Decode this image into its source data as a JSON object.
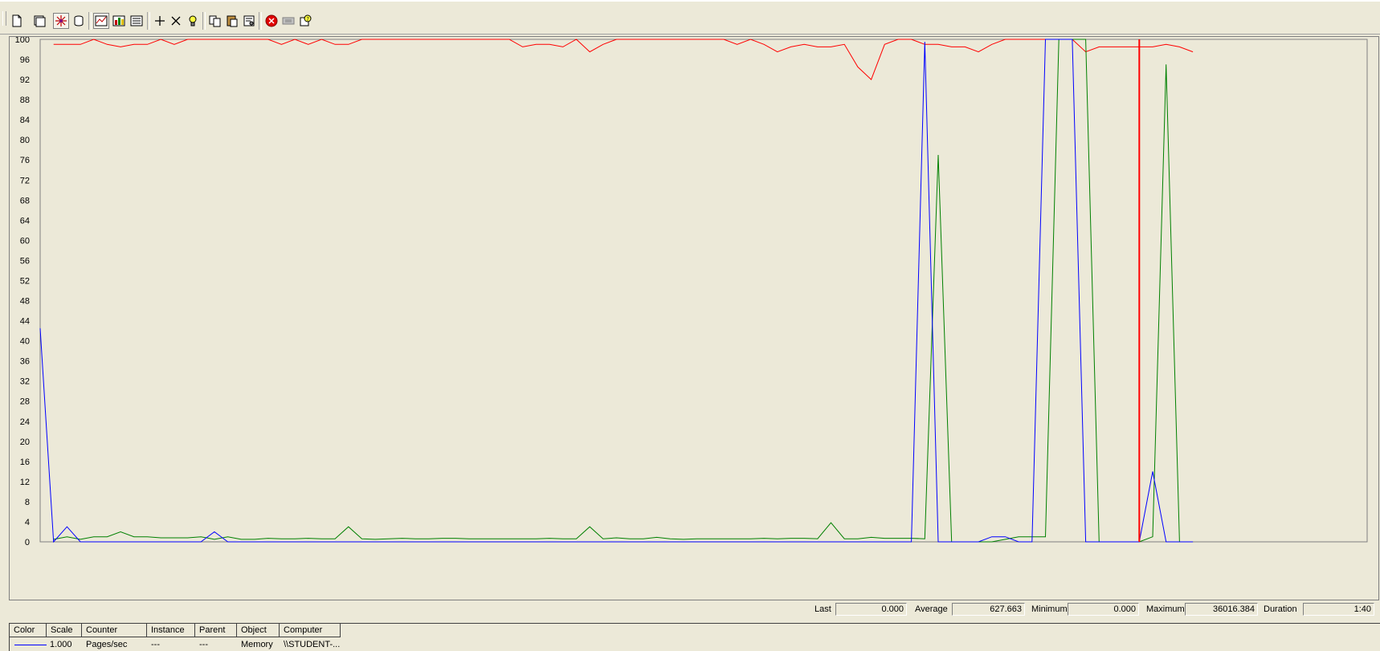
{
  "toolbar": {
    "buttons": [
      {
        "icon": "new-counter-set-icon"
      },
      {
        "icon": "clear-display-icon"
      },
      {
        "icon": "view-current-activity-icon",
        "pressed": true
      },
      {
        "icon": "view-log-data-icon"
      },
      {
        "icon": "view-graph-icon",
        "pressed": true
      },
      {
        "icon": "view-histogram-icon"
      },
      {
        "icon": "view-report-icon"
      },
      {
        "icon": "add-counter-icon"
      },
      {
        "icon": "delete-counter-icon"
      },
      {
        "icon": "highlight-icon"
      },
      {
        "icon": "copy-properties-icon"
      },
      {
        "icon": "paste-counter-list-icon"
      },
      {
        "icon": "properties-icon"
      },
      {
        "icon": "freeze-display-icon"
      },
      {
        "icon": "update-data-icon"
      },
      {
        "icon": "help-icon"
      }
    ]
  },
  "stats": {
    "last_label": "Last",
    "last_value": "0.000",
    "average_label": "Average",
    "average_value": "627.663",
    "minimum_label": "Minimum",
    "minimum_value": "0.000",
    "maximum_label": "Maximum",
    "maximum_value": "36016.384",
    "duration_label": "Duration",
    "duration_value": "1:40"
  },
  "counter_list": {
    "headers": [
      "Color",
      "Scale",
      "Counter",
      "Instance",
      "Parent",
      "Object",
      "Computer"
    ],
    "rows": [
      {
        "color": "#0000FF",
        "scale": "1.000",
        "counter": "Pages/sec",
        "instance": "---",
        "parent": "---",
        "object": "Memory",
        "computer": "\\\\STUDENT-..."
      }
    ]
  },
  "chart_data": {
    "type": "line",
    "ylim": [
      0,
      100
    ],
    "yticks": [
      0,
      4,
      8,
      12,
      16,
      20,
      24,
      28,
      32,
      36,
      40,
      44,
      48,
      52,
      56,
      60,
      64,
      68,
      72,
      76,
      80,
      84,
      88,
      92,
      96,
      100
    ],
    "grid": false,
    "x_samples": 100,
    "time_marker_sample": 82,
    "series": [
      {
        "color": "#FF0000",
        "start_index": 1,
        "values": [
          99,
          99,
          99,
          100,
          99,
          98.5,
          99,
          99,
          100,
          99,
          100,
          100,
          100,
          100,
          100,
          100,
          100,
          99,
          100,
          99,
          100,
          99,
          99,
          100,
          100,
          100,
          100,
          100,
          100,
          100,
          100,
          100,
          100,
          100,
          100,
          98.5,
          99,
          99,
          98.5,
          100,
          97.5,
          99,
          100,
          100,
          100,
          100,
          100,
          100,
          100,
          100,
          100,
          99,
          100,
          99,
          97.5,
          98.5,
          99,
          98.5,
          98.5,
          99,
          94.5,
          92,
          99,
          100,
          100,
          99,
          99,
          98.5,
          98.5,
          97.5,
          99,
          100,
          100,
          100,
          100,
          100,
          100,
          97.5,
          98.5,
          98.5,
          98.5,
          98.5,
          98.5,
          99,
          98.5,
          97.5
        ]
      },
      {
        "color": "#008000",
        "start_index": 1,
        "values": [
          0.5,
          1,
          0.5,
          1,
          1,
          2,
          1,
          1,
          0.8,
          0.8,
          0.8,
          1,
          0.5,
          1,
          0.5,
          0.5,
          0.7,
          0.6,
          0.6,
          0.7,
          0.6,
          0.6,
          3,
          0.6,
          0.5,
          0.6,
          0.7,
          0.6,
          0.6,
          0.7,
          0.7,
          0.6,
          0.6,
          0.6,
          0.6,
          0.6,
          0.6,
          0.7,
          0.6,
          0.6,
          3,
          0.6,
          0.8,
          0.6,
          0.6,
          0.9,
          0.6,
          0.5,
          0.6,
          0.6,
          0.6,
          0.6,
          0.6,
          0.7,
          0.6,
          0.7,
          0.7,
          0.6,
          3.8,
          0.6,
          0.6,
          0.9,
          0.7,
          0.7,
          0.7,
          0.6,
          77,
          0,
          0,
          0,
          0,
          0.5,
          1,
          1,
          1,
          100,
          100,
          100,
          0,
          0,
          0,
          0,
          1,
          95,
          0,
          0
        ]
      },
      {
        "color": "#0000FF",
        "start_index": 0,
        "values": [
          42.5,
          0,
          3,
          0,
          0,
          0,
          0,
          0,
          0,
          0,
          0,
          0,
          0,
          2,
          0,
          0,
          0,
          0,
          0,
          0,
          0,
          0,
          0,
          0,
          0,
          0,
          0,
          0,
          0,
          0,
          0,
          0,
          0,
          0,
          0,
          0,
          0,
          0,
          0,
          0,
          0,
          0,
          0,
          0,
          0,
          0,
          0,
          0,
          0,
          0,
          0,
          0,
          0,
          0,
          0,
          0,
          0,
          0,
          0,
          0,
          0,
          0,
          0,
          0,
          0,
          0,
          99.5,
          0,
          0,
          0,
          0,
          1,
          1,
          0,
          0,
          100,
          100,
          100,
          0,
          0,
          0,
          0,
          0,
          14,
          0,
          0,
          0
        ]
      }
    ]
  }
}
